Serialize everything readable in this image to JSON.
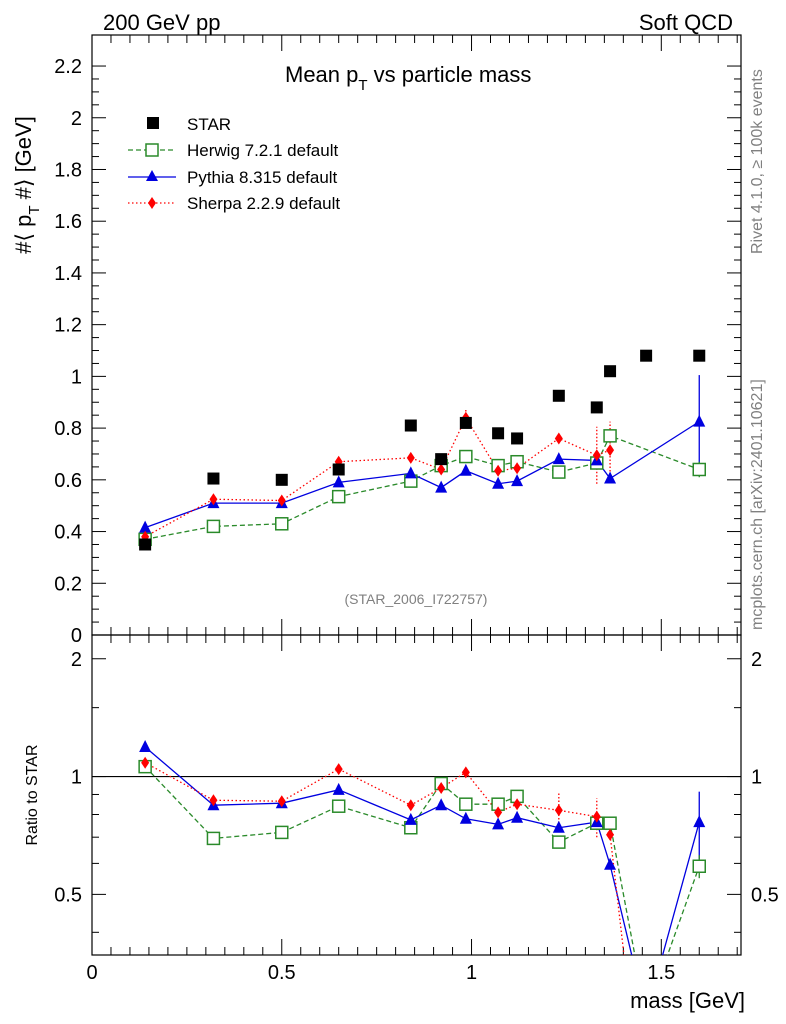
{
  "header": {
    "left": "200 GeV pp",
    "right": "Soft QCD"
  },
  "side": {
    "rivet": "Rivet 4.1.0, ≥ 100k events",
    "mcplots": "mcplots.cern.ch [arXiv:2401.10621]"
  },
  "watermark": "(STAR_2006_I722757)",
  "chart_data": [
    {
      "type": "scatter",
      "title": "Mean p_T vs particle mass",
      "title_main": "Mean p",
      "title_sub": "T",
      "title_rest": " vs particle mass",
      "ylabel": "#⟨ p_T #⟩ [GeV]",
      "ylabel_parts": [
        "#⟨ p",
        "T",
        " #⟩ [GeV]"
      ],
      "xlabel": "mass [GeV]",
      "xlim": [
        0,
        1.71
      ],
      "ylim": [
        0,
        2.32
      ],
      "yticks": [
        "0",
        "0.2",
        "0.4",
        "0.6",
        "0.8",
        "1",
        "1.2",
        "1.4",
        "1.6",
        "1.8",
        "2",
        "2.2"
      ],
      "legend_position": "top-left",
      "series": [
        {
          "name": "STAR",
          "color": "#000000",
          "marker": "square-filled",
          "x": [
            0.14,
            0.32,
            0.5,
            0.65,
            0.84,
            0.92,
            0.985,
            1.07,
            1.12,
            1.23,
            1.33,
            1.365,
            1.46,
            1.6
          ],
          "y": [
            0.35,
            0.605,
            0.6,
            0.64,
            0.81,
            0.68,
            0.82,
            0.78,
            0.76,
            0.925,
            0.88,
            1.02,
            1.08,
            1.08
          ]
        },
        {
          "name": "Herwig 7.2.1 default",
          "color": "#2a8a2a",
          "marker": "square-open",
          "line": "dashed",
          "x": [
            0.14,
            0.32,
            0.5,
            0.65,
            0.84,
            0.92,
            0.985,
            1.07,
            1.12,
            1.23,
            1.33,
            1.365,
            1.6
          ],
          "y": [
            0.37,
            0.42,
            0.43,
            0.535,
            0.595,
            0.655,
            0.69,
            0.655,
            0.67,
            0.63,
            0.665,
            0.77,
            0.64
          ]
        },
        {
          "name": "Pythia 8.315 default",
          "color": "#0000e0",
          "marker": "triangle",
          "line": "solid",
          "x": [
            0.14,
            0.32,
            0.5,
            0.65,
            0.84,
            0.92,
            0.985,
            1.07,
            1.12,
            1.23,
            1.33,
            1.365,
            1.6
          ],
          "y": [
            0.415,
            0.51,
            0.51,
            0.59,
            0.625,
            0.57,
            0.635,
            0.585,
            0.595,
            0.68,
            0.675,
            0.605,
            0.825
          ]
        },
        {
          "name": "Sherpa 2.2.9 default",
          "color": "#ff0000",
          "marker": "diamond",
          "line": "dotted",
          "x": [
            0.14,
            0.32,
            0.5,
            0.65,
            0.84,
            0.92,
            0.985,
            1.07,
            1.12,
            1.23,
            1.33,
            1.365
          ],
          "y": [
            0.38,
            0.525,
            0.52,
            0.67,
            0.685,
            0.64,
            0.84,
            0.635,
            0.645,
            0.76,
            0.695,
            0.715
          ]
        }
      ]
    },
    {
      "type": "scatter",
      "title": "",
      "ylabel": "Ratio to STAR",
      "xlabel": "mass [GeV]",
      "xlim": [
        0,
        1.71
      ],
      "ylim": [
        0.35,
        2.3
      ],
      "yscale": "log",
      "yticks": [
        "0.5",
        "1",
        "2"
      ],
      "xticks": [
        "0",
        "0.5",
        "1",
        "1.5"
      ],
      "reference_line": 1,
      "series": [
        {
          "name": "Herwig 7.2.1 default",
          "color": "#2a8a2a",
          "x": [
            0.14,
            0.32,
            0.5,
            0.65,
            0.84,
            0.92,
            0.985,
            1.07,
            1.12,
            1.23,
            1.33,
            1.365,
            1.46,
            1.6
          ],
          "y": [
            1.06,
            0.695,
            0.72,
            0.84,
            0.74,
            0.96,
            0.85,
            0.85,
            0.89,
            0.68,
            0.76,
            0.76,
            0.0,
            0.59
          ]
        },
        {
          "name": "Pythia 8.315 default",
          "color": "#0000e0",
          "x": [
            0.14,
            0.32,
            0.5,
            0.65,
            0.84,
            0.92,
            0.985,
            1.07,
            1.12,
            1.23,
            1.33,
            1.365,
            1.46,
            1.6
          ],
          "y": [
            1.19,
            0.845,
            0.855,
            0.925,
            0.775,
            0.845,
            0.78,
            0.755,
            0.785,
            0.74,
            0.765,
            0.595,
            0.0,
            0.765
          ]
        },
        {
          "name": "Sherpa 2.2.9 default",
          "color": "#ff0000",
          "x": [
            0.14,
            0.32,
            0.5,
            0.65,
            0.84,
            0.92,
            0.985,
            1.07,
            1.12,
            1.23,
            1.33,
            1.365,
            1.42
          ],
          "y": [
            1.085,
            0.87,
            0.865,
            1.045,
            0.845,
            0.935,
            1.025,
            0.81,
            0.85,
            0.82,
            0.79,
            0.71,
            0.0
          ]
        }
      ]
    }
  ]
}
